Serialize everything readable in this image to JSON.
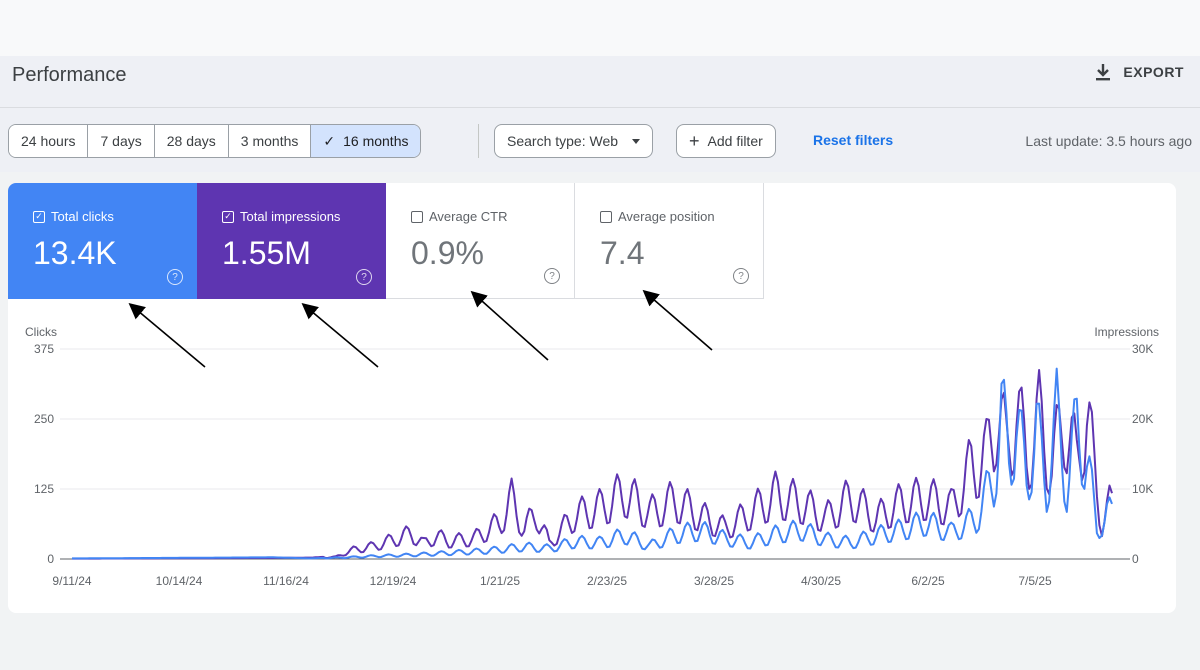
{
  "header": {
    "title": "Performance",
    "export_label": "EXPORT"
  },
  "toolbar": {
    "date_ranges": [
      "24 hours",
      "7 days",
      "28 days",
      "3 months",
      "16 months"
    ],
    "selected_range": "16 months",
    "search_type": "Search type: Web",
    "add_filter": "Add filter",
    "reset_filters": "Reset filters",
    "last_update": "Last update: 3.5 hours ago"
  },
  "metrics": {
    "clicks": {
      "label": "Total clicks",
      "value": "13.4K",
      "checked": true,
      "color": "#4285f4"
    },
    "impressions": {
      "label": "Total impressions",
      "value": "1.55M",
      "checked": true,
      "color": "#5e35b1"
    },
    "ctr": {
      "label": "Average CTR",
      "value": "0.9%",
      "checked": false
    },
    "position": {
      "label": "Average position",
      "value": "7.4",
      "checked": false
    }
  },
  "chart_data": {
    "type": "line",
    "left_axis_label": "Clicks",
    "right_axis_label": "Impressions",
    "left_ticks": [
      "0",
      "125",
      "250",
      "375"
    ],
    "right_ticks": [
      "0",
      "10K",
      "20K",
      "30K"
    ],
    "ylim_left": [
      0,
      375
    ],
    "ylim_right": [
      0,
      30000
    ],
    "x_ticks": [
      "9/11/24",
      "10/14/24",
      "11/16/24",
      "12/19/24",
      "1/21/25",
      "2/23/25",
      "3/28/25",
      "4/30/25",
      "6/2/25",
      "7/5/25"
    ],
    "series": [
      {
        "name": "Clicks",
        "color": "#4285f4",
        "axis": "left",
        "keypoints": [
          [
            0,
            1
          ],
          [
            40,
            2
          ],
          [
            80,
            3
          ],
          [
            95,
            1
          ],
          [
            110,
            4
          ],
          [
            120,
            7
          ],
          [
            135,
            10
          ],
          [
            150,
            15
          ],
          [
            165,
            20
          ],
          [
            180,
            30
          ],
          [
            190,
            26
          ],
          [
            200,
            42
          ],
          [
            210,
            40
          ],
          [
            220,
            58
          ],
          [
            230,
            32
          ],
          [
            240,
            60
          ],
          [
            250,
            70
          ],
          [
            260,
            50
          ],
          [
            270,
            40
          ],
          [
            280,
            60
          ],
          [
            290,
            72
          ],
          [
            300,
            48
          ],
          [
            310,
            40
          ],
          [
            320,
            58
          ],
          [
            330,
            72
          ],
          [
            340,
            90
          ],
          [
            350,
            65
          ],
          [
            360,
            100
          ],
          [
            367,
            200
          ],
          [
            370,
            350
          ],
          [
            373,
            260
          ],
          [
            376,
            330
          ],
          [
            380,
            200
          ],
          [
            384,
            310
          ],
          [
            388,
            180
          ],
          [
            392,
            340
          ],
          [
            396,
            180
          ],
          [
            400,
            320
          ],
          [
            404,
            250
          ],
          [
            408,
            70
          ],
          [
            412,
            110
          ]
        ]
      },
      {
        "name": "Impressions",
        "color": "#5e35b1",
        "axis": "right",
        "keypoints": [
          [
            0,
            50
          ],
          [
            40,
            100
          ],
          [
            80,
            150
          ],
          [
            95,
            200
          ],
          [
            105,
            400
          ],
          [
            112,
            1800
          ],
          [
            120,
            2500
          ],
          [
            128,
            3800
          ],
          [
            135,
            5000
          ],
          [
            140,
            3000
          ],
          [
            145,
            4500
          ],
          [
            150,
            3500
          ],
          [
            160,
            4000
          ],
          [
            170,
            7000
          ],
          [
            175,
            11500
          ],
          [
            180,
            6000
          ],
          [
            185,
            9000
          ],
          [
            190,
            3000
          ],
          [
            200,
            8500
          ],
          [
            210,
            10000
          ],
          [
            220,
            13000
          ],
          [
            230,
            9000
          ],
          [
            240,
            11500
          ],
          [
            250,
            8500
          ],
          [
            260,
            6000
          ],
          [
            270,
            9000
          ],
          [
            280,
            12500
          ],
          [
            290,
            11000
          ],
          [
            300,
            8000
          ],
          [
            310,
            12000
          ],
          [
            320,
            8000
          ],
          [
            330,
            11000
          ],
          [
            340,
            12000
          ],
          [
            350,
            10000
          ],
          [
            358,
            18000
          ],
          [
            364,
            20000
          ],
          [
            368,
            29000
          ],
          [
            372,
            22000
          ],
          [
            376,
            29000
          ],
          [
            380,
            20000
          ],
          [
            385,
            27000
          ],
          [
            390,
            18000
          ],
          [
            395,
            28000
          ],
          [
            400,
            19000
          ],
          [
            404,
            29000
          ],
          [
            407,
            17000
          ],
          [
            410,
            7000
          ],
          [
            413,
            10500
          ]
        ]
      }
    ]
  }
}
